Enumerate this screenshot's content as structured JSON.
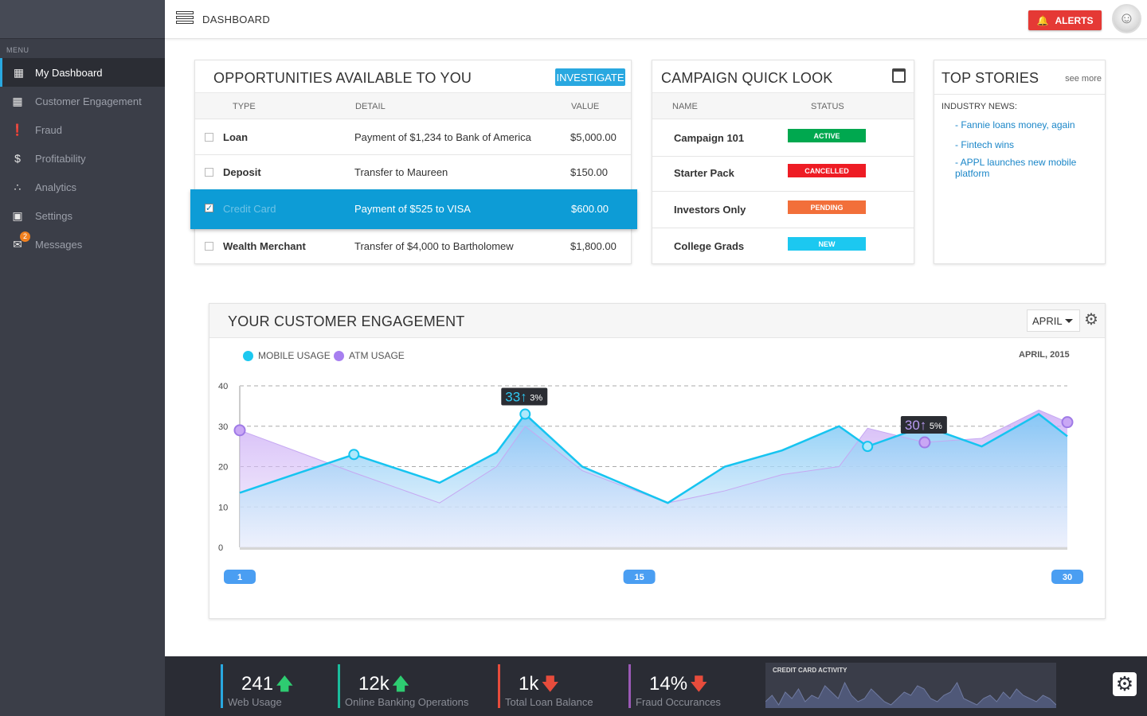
{
  "sidebar": {
    "menu_label": "MENU",
    "items": [
      {
        "label": "My Dashboard",
        "icon": "dashboard-icon",
        "active": true
      },
      {
        "label": "Customer Engagement",
        "icon": "building-icon"
      },
      {
        "label": "Fraud",
        "icon": "alert-icon"
      },
      {
        "label": "Profitability",
        "icon": "dollar-icon"
      },
      {
        "label": "Analytics",
        "icon": "analytics-icon"
      },
      {
        "label": "Settings",
        "icon": "settings-icon"
      },
      {
        "label": "Messages",
        "icon": "mail-icon",
        "badge": "2"
      }
    ]
  },
  "header": {
    "title": "DASHBOARD",
    "alerts_label": "ALERTS"
  },
  "opportunities": {
    "title": "OPPORTUNITIES AVAILABLE TO YOU",
    "action": "INVESTIGATE",
    "columns": [
      "TYPE",
      "DETAIL",
      "VALUE"
    ],
    "rows": [
      {
        "type": "Loan",
        "detail": "Payment of $1,234 to Bank of America",
        "value": "$5,000.00",
        "checked": false
      },
      {
        "type": "Deposit",
        "detail": "Transfer to Maureen",
        "value": "$150.00",
        "checked": false
      },
      {
        "type": "Credit Card",
        "detail": "Payment of $525 to VISA",
        "value": "$600.00",
        "checked": true,
        "selected": true
      },
      {
        "type": "Wealth Merchant",
        "detail": "Transfer of $4,000 to Bartholomew",
        "value": "$1,800.00",
        "checked": false
      }
    ]
  },
  "campaign": {
    "title": "CAMPAIGN QUICK LOOK",
    "columns": [
      "NAME",
      "STATUS"
    ],
    "rows": [
      {
        "name": "Campaign 101",
        "status": "ACTIVE",
        "color": "#00a84f"
      },
      {
        "name": "Starter Pack",
        "status": "CANCELLED",
        "color": "#ee1c24"
      },
      {
        "name": "Investors Only",
        "status": "PENDING",
        "color": "#f26f3a"
      },
      {
        "name": "College Grads",
        "status": "NEW",
        "color": "#1cc8f0"
      }
    ]
  },
  "stories": {
    "title": "TOP STORIES",
    "see_more": "see more",
    "section": "INDUSTRY NEWS:",
    "items": [
      "- Fannie loans money, again",
      "- Fintech wins",
      "- APPL launches new mobile platform"
    ]
  },
  "engagement": {
    "title": "YOUR CUSTOMER ENGAGEMENT",
    "month": "APRIL",
    "date": "APRIL, 2015",
    "legend": [
      {
        "name": "MOBILE USAGE",
        "color": "#1cc8f0"
      },
      {
        "name": "ATM USAGE",
        "color": "#a77ff0"
      }
    ]
  },
  "chart_data": {
    "type": "area",
    "ylim": [
      0,
      40
    ],
    "yticks": [
      "0",
      "10",
      "20",
      "30",
      "40"
    ],
    "x_labels": [
      "1",
      "15",
      "30"
    ],
    "series": [
      {
        "name": "MOBILE USAGE",
        "color": "#1cc8f0",
        "x": [
          1,
          5,
          8,
          10,
          11,
          13,
          16,
          18,
          20,
          22,
          23,
          25,
          27,
          29,
          30
        ],
        "values": [
          13.5,
          23,
          16,
          23.5,
          33,
          20,
          11,
          20,
          24,
          30,
          25,
          30,
          25,
          33,
          27.5
        ]
      },
      {
        "name": "ATM USAGE",
        "color": "#a77ff0",
        "x": [
          1,
          5,
          8,
          10,
          11,
          13,
          16,
          18,
          20,
          22,
          23,
          25,
          27,
          29,
          30
        ],
        "values": [
          29,
          18.5,
          11,
          20,
          30,
          19,
          11,
          14,
          18,
          20,
          29.5,
          26,
          27,
          34,
          31
        ]
      }
    ],
    "annotations": [
      {
        "value": "33",
        "change": "3%"
      },
      {
        "value": "30",
        "change": "5%"
      }
    ]
  },
  "footer": {
    "stats": [
      {
        "value": "241",
        "label": "Web Usage",
        "trend": "up",
        "color": "#29a8e0"
      },
      {
        "value": "12k",
        "label": "Online Banking Operations",
        "trend": "up",
        "color": "#1abc9c"
      },
      {
        "value": "1k",
        "label": "Total Loan Balance",
        "trend": "down",
        "color": "#e74c3c"
      },
      {
        "value": "14%",
        "label": "Fraud Occurances",
        "trend": "down",
        "color": "#9b59b6"
      }
    ],
    "cc_title": "CREDIT CARD ACTIVITY",
    "cc_values": [
      8,
      10,
      7,
      11,
      9,
      12,
      8,
      10,
      9,
      13,
      11,
      9,
      14,
      10,
      8,
      9,
      12,
      10,
      8,
      7,
      9,
      11,
      10,
      13,
      12,
      9,
      8,
      10,
      11,
      14,
      9,
      8,
      7,
      9,
      10,
      8,
      11,
      9,
      12,
      10,
      9,
      8,
      10,
      9,
      7
    ]
  }
}
